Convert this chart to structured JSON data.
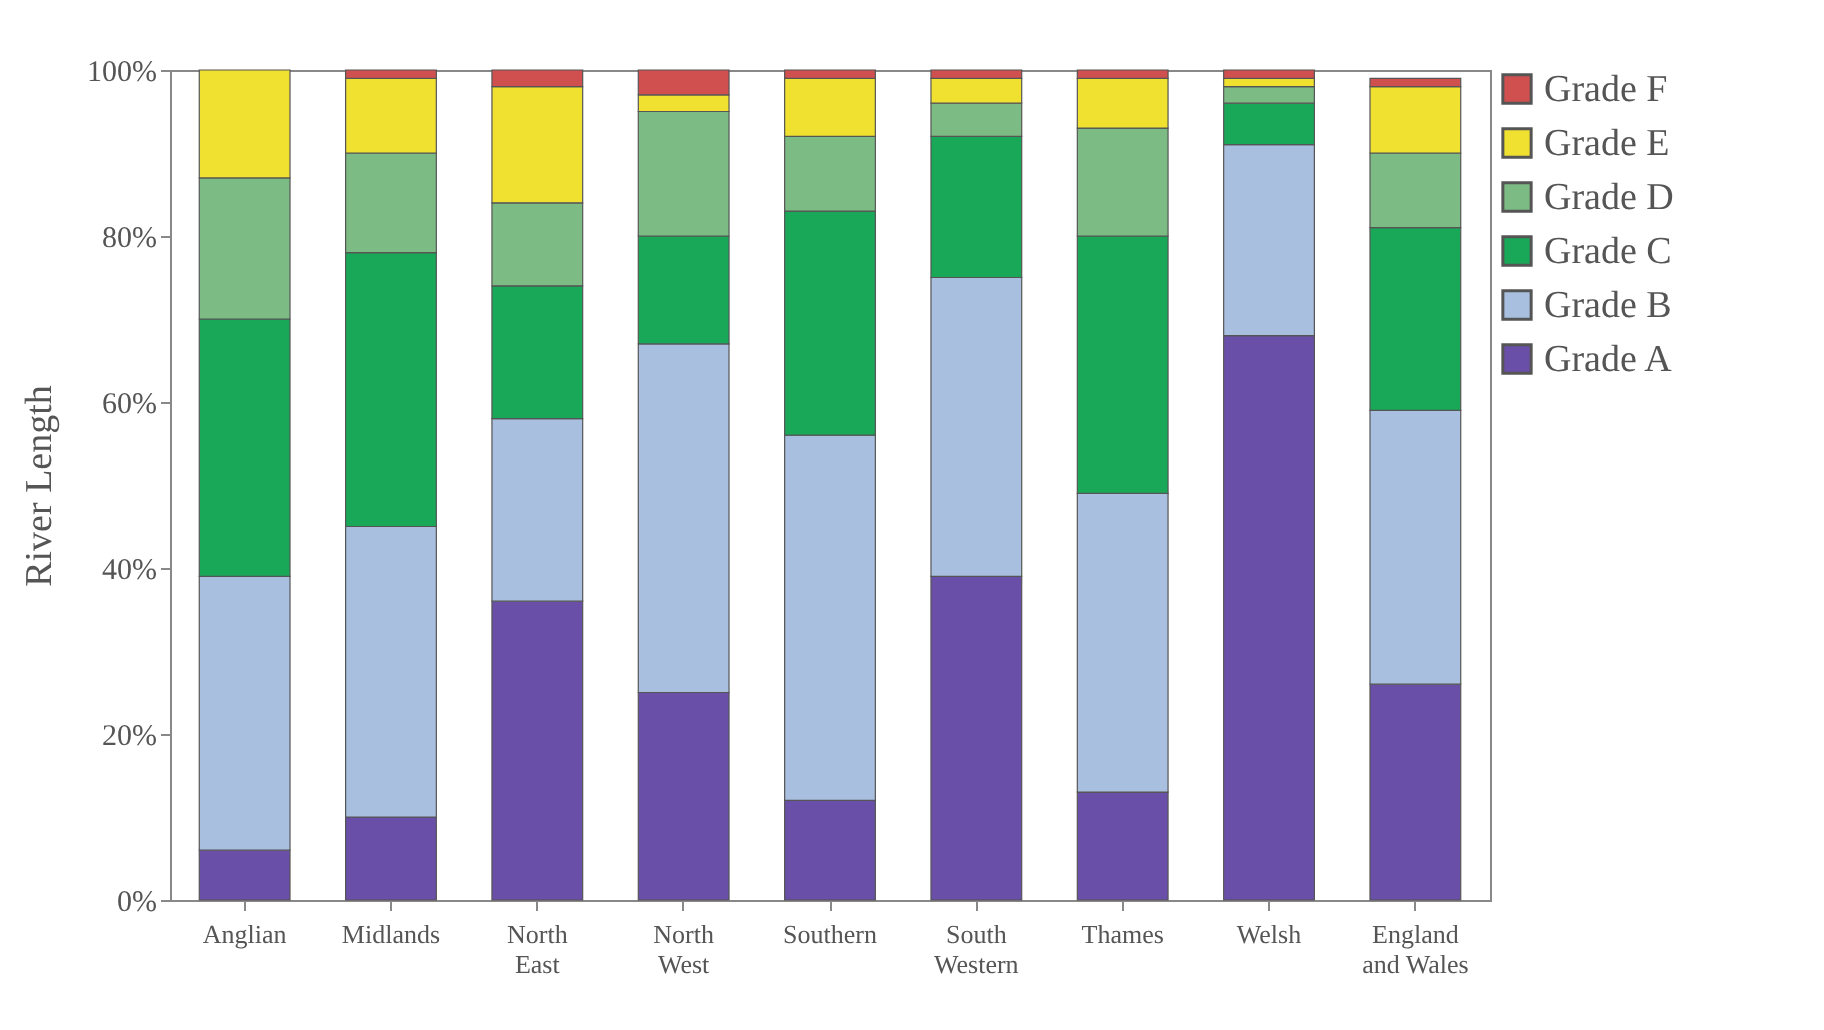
{
  "chart_data": {
    "type": "bar",
    "stacked": true,
    "ylabel": "River Length",
    "legend": "right",
    "categories": [
      "Anglian",
      "Midlands",
      "North East",
      "North West",
      "Southern",
      "South Western",
      "Thames",
      "Welsh",
      "England and Wales"
    ],
    "series": [
      {
        "name": "Grade A",
        "color": "#6a4fa8",
        "values": [
          6,
          10,
          36,
          25,
          12,
          39,
          13,
          68,
          26
        ]
      },
      {
        "name": "Grade B",
        "color": "#a9bfe0",
        "values": [
          33,
          35,
          22,
          42,
          44,
          36,
          36,
          23,
          33
        ]
      },
      {
        "name": "Grade C",
        "color": "#18a858",
        "values": [
          31,
          33,
          16,
          13,
          27,
          17,
          31,
          5,
          22
        ]
      },
      {
        "name": "Grade D",
        "color": "#7dbb84",
        "values": [
          17,
          12,
          10,
          15,
          9,
          4,
          13,
          2,
          9
        ]
      },
      {
        "name": "Grade E",
        "color": "#f0e030",
        "values": [
          13,
          9,
          14,
          2,
          7,
          3,
          6,
          1,
          8
        ]
      },
      {
        "name": "Grade F",
        "color": "#d05050",
        "values": [
          0,
          1,
          2,
          3,
          1,
          1,
          1,
          1,
          1
        ]
      }
    ],
    "ylim": [
      0,
      100
    ],
    "yticks": [
      {
        "value": 0,
        "label": "0%"
      },
      {
        "value": 20,
        "label": "20%"
      },
      {
        "value": 40,
        "label": "40%"
      },
      {
        "value": 60,
        "label": "60%"
      },
      {
        "value": 80,
        "label": "80%"
      },
      {
        "value": 100,
        "label": "100%"
      }
    ]
  }
}
